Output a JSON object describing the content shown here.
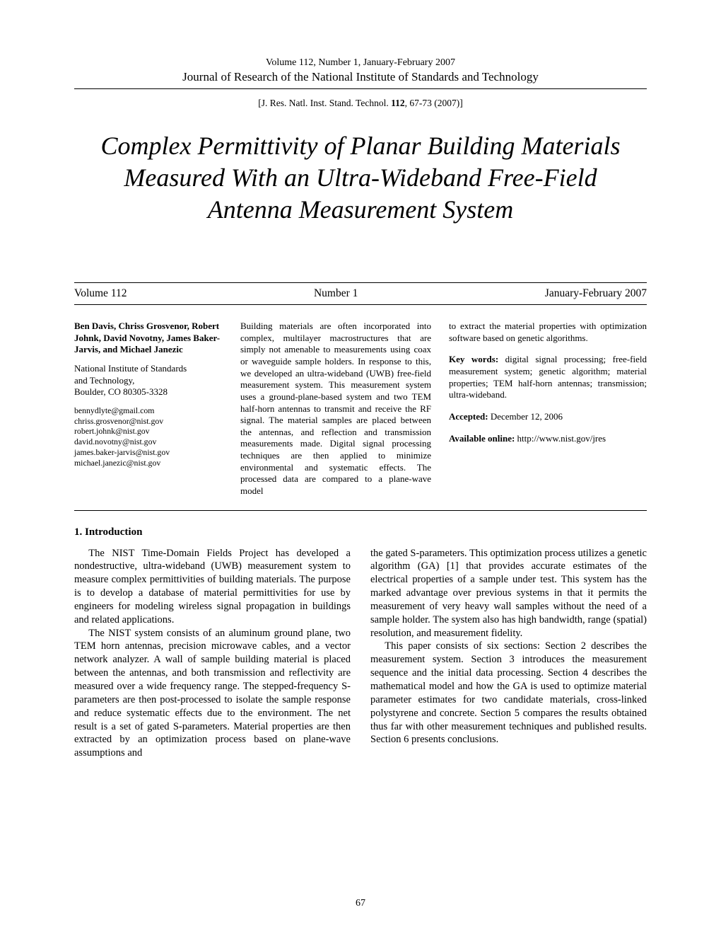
{
  "header": {
    "volume_line": "Volume 112, Number 1, January-February 2007",
    "journal": "Journal of Research of the National Institute of Standards and Technology",
    "citation_prefix": "[J. Res. Natl. Inst. Stand. Technol. ",
    "citation_vol": "112",
    "citation_suffix": ", 67-73 (2007)]"
  },
  "title": "Complex Permittivity of Planar Building Materials Measured With an Ultra-Wideband Free-Field Antenna Measurement System",
  "issue_row": {
    "volume": "Volume 112",
    "number": "Number 1",
    "date": "January-February 2007"
  },
  "authors": {
    "names": "Ben Davis, Chriss Grosvenor, Robert Johnk, David Novotny, James Baker-Jarvis, and Michael Janezic",
    "affiliation_line1": "National Institute of Standards",
    "affiliation_line2": "and Technology,",
    "affiliation_line3": "Boulder, CO 80305-3328",
    "emails": [
      "bennydlyte@gmail.com",
      "chriss.grosvenor@nist.gov",
      "robert.johnk@nist.gov",
      "david.novotny@nist.gov",
      "james.baker-jarvis@nist.gov",
      "michael.janezic@nist.gov"
    ]
  },
  "abstract": "Building materials are often incorporated into complex, multilayer macrostructures that are simply not amenable to measurements using coax or waveguide sample holders. In response to this, we developed an ultra-wideband (UWB) free-field measurement system. This measurement system uses a ground-plane-based system and two TEM half-horn antennas to transmit and receive the RF signal. The material samples are placed between the antennas, and reflection and transmission measurements made. Digital signal processing techniques are then applied to minimize environmental and systematic effects. The processed data are compared to a plane-wave model",
  "right_col": {
    "top_para": "to extract the material properties with optimization software based on genetic algorithms.",
    "keywords_label": "Key words:",
    "keywords": "  digital signal processing; free-field measurement system; genetic algorithm; material properties; TEM half-horn antennas; transmission; ultra-wideband.",
    "accepted_label": "Accepted:",
    "accepted": "  December 12, 2006",
    "online_label": "Available online:",
    "online": "  http://www.nist.gov/jres"
  },
  "section_heading": "1.    Introduction",
  "body_left": {
    "p1": "The NIST Time-Domain Fields Project has developed a nondestructive, ultra-wideband (UWB) measurement system to measure complex permittivities of building materials. The purpose is to develop a database of material permittivities for use by engineers for modeling wireless signal propagation in buildings and related applications.",
    "p2": "The NIST system consists of an aluminum ground plane, two TEM horn antennas, precision microwave cables, and a vector network analyzer. A wall of sample building material is placed between the antennas, and both transmission and reflectivity are measured over a wide frequency range. The stepped-frequency S-parameters are then post-processed to isolate the sample response and reduce systematic effects due to the environment. The net result is a set of gated S-parameters. Material properties are then extracted by an optimization process based on plane-wave assumptions and"
  },
  "body_right": {
    "p1": "the gated S-parameters. This optimization process utilizes a genetic algorithm (GA) [1] that provides accurate estimates of the electrical properties of a sample under test. This system has the marked advantage over previous systems in that it permits the measurement of very heavy wall samples without the need of a sample holder. The system also has high bandwidth, range (spatial) resolution, and measurement fidelity.",
    "p2": "This paper consists of six sections: Section 2 describes the measurement system. Section 3 introduces the measurement sequence and the initial data processing. Section 4 describes the mathematical model and how the GA is used to optimize material parameter estimates for two candidate materials, cross-linked polystyrene and concrete. Section 5 compares the results obtained thus far with other measurement techniques and published results. Section 6 presents conclusions."
  },
  "page_number": "67"
}
